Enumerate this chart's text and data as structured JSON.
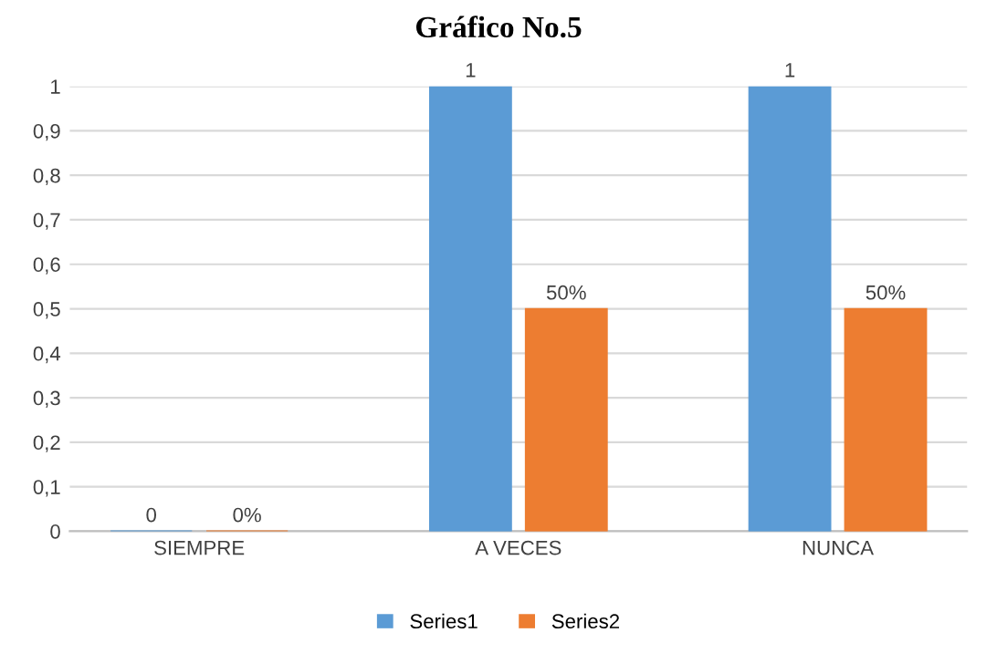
{
  "chart_data": {
    "type": "bar",
    "title": "Gráfico No.5",
    "categories": [
      "SIEMPRE",
      "A VECES",
      "NUNCA"
    ],
    "series": [
      {
        "name": "Series1",
        "color": "#5b9bd5",
        "values": [
          0,
          1,
          1
        ],
        "value_labels": [
          "0",
          "1",
          "1"
        ]
      },
      {
        "name": "Series2",
        "color": "#ed7d31",
        "values": [
          0,
          0.5,
          0.5
        ],
        "value_labels": [
          "0%",
          "50%",
          "50%"
        ]
      }
    ],
    "ylim": [
      0,
      1
    ],
    "yticks": [
      0,
      {
        "value": 0.1,
        "label": "0,1"
      },
      {
        "value": 0.2,
        "label": "0,2"
      },
      {
        "value": 0.3,
        "label": "0,3"
      },
      {
        "value": 0.4,
        "label": "0,4"
      },
      {
        "value": 0.5,
        "label": "0,5"
      },
      {
        "value": 0.6,
        "label": "0,6"
      },
      {
        "value": 0.7,
        "label": "0,7"
      },
      {
        "value": 0.8,
        "label": "0,8"
      },
      {
        "value": 0.9,
        "label": "0,9"
      },
      1
    ],
    "grid": "y",
    "legend": "bottom"
  }
}
